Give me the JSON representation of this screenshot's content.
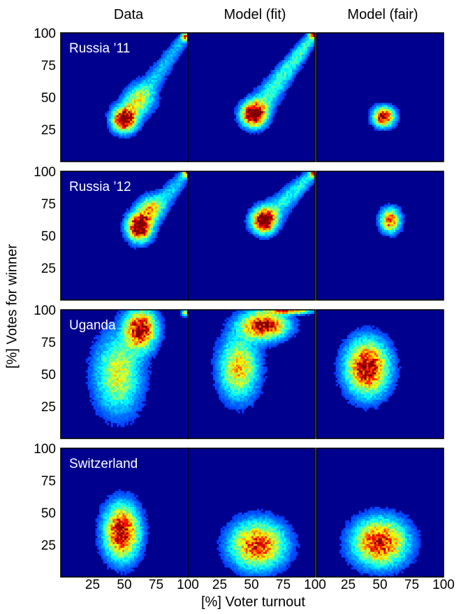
{
  "chart_data": {
    "type": "heatmap",
    "column_titles": [
      "Data",
      "Model (fit)",
      "Model (fair)"
    ],
    "row_labels": [
      "Russia ’11",
      "Russia ’12",
      "Uganda",
      "Switzerland"
    ],
    "xlabel": "[%] Voter turnout",
    "ylabel": "[%] Votes for winner",
    "xlim": [
      0,
      100
    ],
    "ylim": [
      0,
      100
    ],
    "xticks": [
      "25",
      "50",
      "75",
      "100"
    ],
    "yticks": [
      "25",
      "50",
      "75",
      "100"
    ],
    "colormap": "jet",
    "background_color": "#00008f",
    "panels": [
      {
        "row": "Russia ’11",
        "col": "Data",
        "blobs": [
          {
            "x": 50,
            "y": 33,
            "sx": 6,
            "sy": 6,
            "w": 1.0
          },
          {
            "x": 62,
            "y": 48,
            "sx": 8,
            "sy": 8,
            "w": 0.35
          },
          {
            "x": 98,
            "y": 97,
            "sx": 2,
            "sy": 2,
            "w": 0.6
          }
        ],
        "tail": {
          "from": [
            50,
            33
          ],
          "to": [
            100,
            100
          ],
          "w": 0.22
        }
      },
      {
        "row": "Russia ’11",
        "col": "Model (fit)",
        "blobs": [
          {
            "x": 52,
            "y": 37,
            "sx": 6,
            "sy": 6,
            "w": 1.0
          },
          {
            "x": 99,
            "y": 99,
            "sx": 2,
            "sy": 2,
            "w": 0.8
          }
        ],
        "tail": {
          "from": [
            52,
            37
          ],
          "to": [
            100,
            100
          ],
          "w": 0.35
        }
      },
      {
        "row": "Russia ’11",
        "col": "Model (fair)",
        "blobs": [
          {
            "x": 53,
            "y": 35,
            "sx": 5.5,
            "sy": 5,
            "w": 1.0
          }
        ],
        "tail": null
      },
      {
        "row": "Russia ’12",
        "col": "Data",
        "blobs": [
          {
            "x": 62,
            "y": 57,
            "sx": 6,
            "sy": 7,
            "w": 1.0
          },
          {
            "x": 70,
            "y": 72,
            "sx": 6,
            "sy": 6,
            "w": 0.45
          },
          {
            "x": 99,
            "y": 99,
            "sx": 2,
            "sy": 2,
            "w": 0.6
          }
        ],
        "tail": {
          "from": [
            62,
            57
          ],
          "to": [
            100,
            100
          ],
          "w": 0.25
        }
      },
      {
        "row": "Russia ’12",
        "col": "Model (fit)",
        "blobs": [
          {
            "x": 60,
            "y": 62,
            "sx": 6,
            "sy": 6,
            "w": 1.0
          },
          {
            "x": 99,
            "y": 99,
            "sx": 2,
            "sy": 2,
            "w": 0.6
          }
        ],
        "tail": {
          "from": [
            60,
            62
          ],
          "to": [
            100,
            100
          ],
          "w": 0.3
        }
      },
      {
        "row": "Russia ’12",
        "col": "Model (fair)",
        "blobs": [
          {
            "x": 58,
            "y": 62,
            "sx": 5,
            "sy": 6,
            "w": 0.85
          }
        ],
        "tail": null
      },
      {
        "row": "Uganda",
        "col": "Data",
        "blobs": [
          {
            "x": 63,
            "y": 85,
            "sx": 8,
            "sy": 10,
            "w": 1.0
          },
          {
            "x": 45,
            "y": 50,
            "sx": 12,
            "sy": 20,
            "w": 0.55
          },
          {
            "x": 98,
            "y": 98,
            "sx": 2,
            "sy": 2,
            "w": 0.5
          }
        ],
        "tail": null
      },
      {
        "row": "Uganda",
        "col": "Model (fit)",
        "blobs": [
          {
            "x": 60,
            "y": 88,
            "sx": 12,
            "sy": 7,
            "w": 1.0
          },
          {
            "x": 40,
            "y": 55,
            "sx": 10,
            "sy": 16,
            "w": 0.65
          },
          {
            "x": 80,
            "y": 99,
            "sx": 12,
            "sy": 1.5,
            "w": 0.7
          }
        ],
        "tail": null
      },
      {
        "row": "Uganda",
        "col": "Model (fair)",
        "blobs": [
          {
            "x": 40,
            "y": 55,
            "sx": 11,
            "sy": 14,
            "w": 1.0
          }
        ],
        "tail": null
      },
      {
        "row": "Switzerland",
        "col": "Data",
        "blobs": [
          {
            "x": 48,
            "y": 35,
            "sx": 9,
            "sy": 14,
            "w": 1.0
          }
        ],
        "tail": null
      },
      {
        "row": "Switzerland",
        "col": "Model (fit)",
        "blobs": [
          {
            "x": 55,
            "y": 25,
            "sx": 14,
            "sy": 12,
            "w": 0.85
          }
        ],
        "tail": null
      },
      {
        "row": "Switzerland",
        "col": "Model (fair)",
        "blobs": [
          {
            "x": 50,
            "y": 27,
            "sx": 14,
            "sy": 12,
            "w": 0.9
          }
        ],
        "tail": null
      }
    ]
  }
}
